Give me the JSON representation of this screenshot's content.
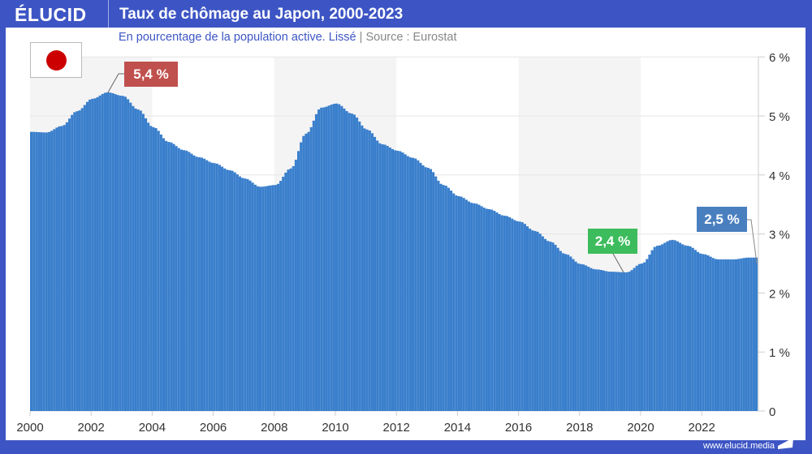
{
  "header": {
    "logo": "ÉLUCID",
    "title": "Taux de chômage au Japon, 2000-2023"
  },
  "subtitle": {
    "text": "En pourcentage de la population active. Lissé",
    "sep": "|",
    "source": "Source : Eurostat"
  },
  "footer": {
    "url": "www.elucid.media"
  },
  "colors": {
    "frame": "#3d55c4",
    "area": "#3a7fcc",
    "peak": "#c0504d",
    "low": "#3cbc5c",
    "last": "#4a7fbf"
  },
  "chart_data": {
    "type": "area",
    "title": "Taux de chômage au Japon, 2000-2023",
    "xlabel": "",
    "ylabel": "%",
    "xlim": [
      2000,
      2024
    ],
    "ylim": [
      0,
      6
    ],
    "x_ticks": [
      "2000",
      "2002",
      "2004",
      "2006",
      "2008",
      "2010",
      "2012",
      "2014",
      "2016",
      "2018",
      "2020",
      "2022"
    ],
    "y_ticks": [
      "0",
      "1 %",
      "2 %",
      "3 %",
      "4 %",
      "5 %",
      "6 %"
    ],
    "shaded_periods": [
      [
        2000,
        2004
      ],
      [
        2008,
        2012
      ],
      [
        2016,
        2020
      ]
    ],
    "x": [
      2000,
      2000.5,
      2001,
      2001.5,
      2002,
      2002.5,
      2003,
      2003.5,
      2004,
      2004.5,
      2005,
      2005.5,
      2006,
      2006.5,
      2007,
      2007.5,
      2008,
      2008.5,
      2009,
      2009.5,
      2010,
      2010.5,
      2011,
      2011.5,
      2012,
      2012.5,
      2013,
      2013.5,
      2014,
      2014.5,
      2015,
      2015.5,
      2016,
      2016.5,
      2017,
      2017.5,
      2018,
      2018.5,
      2019,
      2019.5,
      2020,
      2020.5,
      2021,
      2021.5,
      2022,
      2022.5,
      2023,
      2023.5,
      2023.75,
      2023.83
    ],
    "values": [
      4.73,
      4.72,
      4.83,
      5.08,
      5.29,
      5.4,
      5.34,
      5.11,
      4.81,
      4.56,
      4.42,
      4.3,
      4.2,
      4.08,
      3.94,
      3.8,
      3.83,
      4.11,
      4.7,
      5.14,
      5.21,
      5.04,
      4.77,
      4.52,
      4.41,
      4.29,
      4.12,
      3.83,
      3.64,
      3.52,
      3.42,
      3.31,
      3.21,
      3.05,
      2.87,
      2.66,
      2.49,
      2.4,
      2.36,
      2.35,
      2.5,
      2.8,
      2.9,
      2.8,
      2.66,
      2.57,
      2.57,
      2.6,
      2.6,
      2.5
    ],
    "annotations": [
      {
        "text": "5,4 %",
        "x": 2002.6,
        "value": 5.4
      },
      {
        "text": "2,4 %",
        "x": 2019.4,
        "value": 2.4
      },
      {
        "text": "2,5 %",
        "x": 2023.83,
        "value": 2.5
      }
    ]
  }
}
